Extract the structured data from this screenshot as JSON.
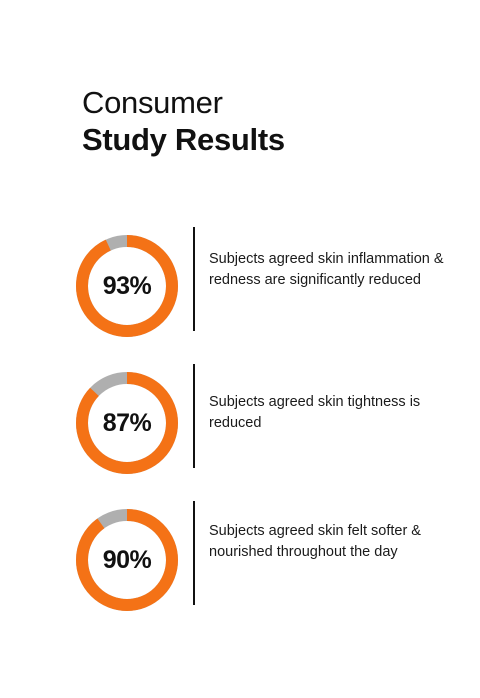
{
  "title": {
    "line1": "Consumer",
    "line2": "Study Results"
  },
  "colors": {
    "accent": "#F47216",
    "track": "#AFAFAF",
    "text": "#111111"
  },
  "chart_data": [
    {
      "type": "pie",
      "value": 93,
      "label": "93%",
      "description": "Subjects agreed skin inflammation & redness are significantly reduced"
    },
    {
      "type": "pie",
      "value": 87,
      "label": "87%",
      "description": "Subjects agreed skin tightness is reduced"
    },
    {
      "type": "pie",
      "value": 90,
      "label": "90%",
      "description": "Subjects agreed skin felt softer & nourished throughout the day"
    }
  ]
}
